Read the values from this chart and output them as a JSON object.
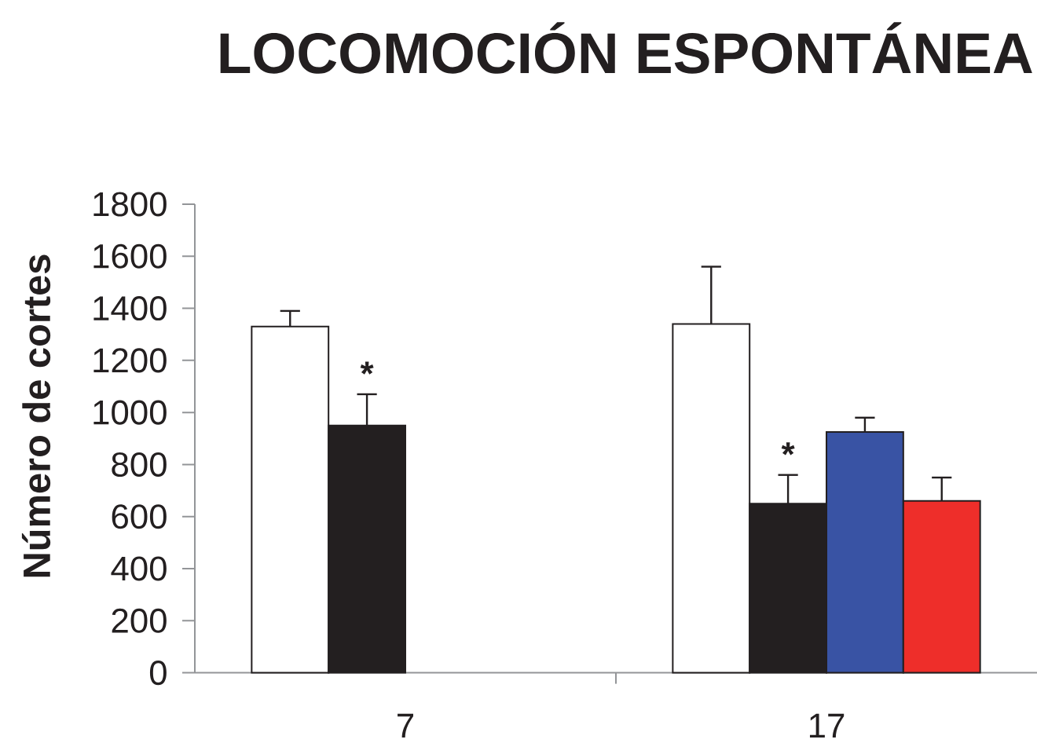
{
  "chart_data": {
    "type": "bar",
    "title": "LOCOMOCIÓN ESPONTÁNEA",
    "ylabel": "Número de cortes",
    "categories": [
      "7",
      "17"
    ],
    "series": [
      {
        "color": "#ffffff",
        "values": [
          1330,
          1340
        ],
        "errors": [
          [
            1330,
            1390
          ],
          [
            1340,
            1560
          ]
        ]
      },
      {
        "color": "#231f20",
        "values": [
          950,
          650
        ],
        "errors": [
          [
            950,
            1070
          ],
          [
            650,
            760
          ]
        ]
      },
      {
        "color": "#3953a4",
        "values": [
          null,
          925
        ],
        "errors": [
          null,
          [
            925,
            980
          ]
        ]
      },
      {
        "color": "#ee2e2a",
        "values": [
          null,
          660
        ],
        "errors": [
          null,
          [
            660,
            750
          ]
        ]
      }
    ],
    "ylim": [
      0,
      1800
    ],
    "yticks": [
      0,
      200,
      400,
      600,
      800,
      1000,
      1200,
      1400,
      1600,
      1800
    ],
    "annotations": [
      {
        "text": "*",
        "x": "7",
        "y": 950
      },
      {
        "text": "*",
        "x": "17",
        "y": 650
      }
    ]
  }
}
